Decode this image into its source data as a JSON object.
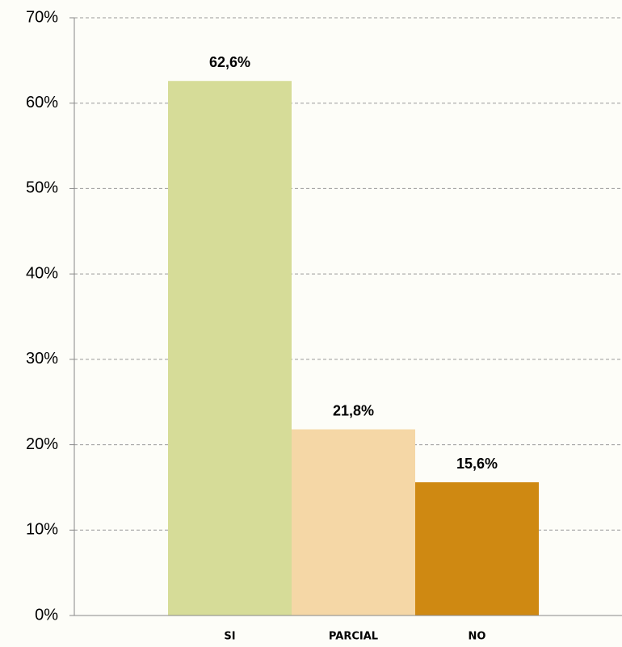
{
  "chart_data": {
    "type": "bar",
    "categories": [
      "SI",
      "PARCIAL",
      "NO"
    ],
    "values": [
      62.6,
      21.8,
      15.6
    ],
    "value_labels": [
      "62,6%",
      "21,8%",
      "15,6%"
    ],
    "colors": [
      "#d6dc98",
      "#f5d7a6",
      "#cf8912"
    ],
    "ylim": [
      0,
      70
    ],
    "yticks": [
      {
        "value": 0,
        "label": "0%"
      },
      {
        "value": 10,
        "label": "10%"
      },
      {
        "value": 20,
        "label": "20%"
      },
      {
        "value": 30,
        "label": "30%"
      },
      {
        "value": 40,
        "label": "40%"
      },
      {
        "value": 50,
        "label": "50%"
      },
      {
        "value": 60,
        "label": "60%"
      },
      {
        "value": 70,
        "label": "70%"
      }
    ],
    "grid": true
  }
}
